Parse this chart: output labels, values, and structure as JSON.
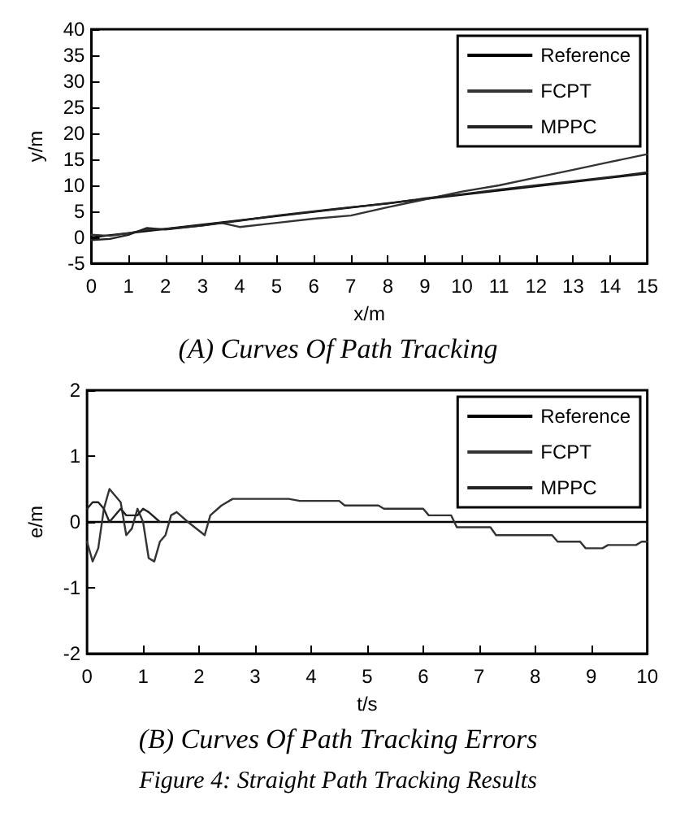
{
  "chart_data": [
    {
      "type": "line",
      "title": "(A) Curves Of Path Tracking",
      "xlabel": "x/m",
      "ylabel": "y/m",
      "xlim": [
        0,
        15
      ],
      "xticks": [
        0,
        1,
        2,
        3,
        4,
        5,
        6,
        7,
        8,
        9,
        10,
        11,
        12,
        13,
        14,
        15
      ],
      "ylim": [
        -5,
        40
      ],
      "yticks": [
        -5,
        0,
        5,
        10,
        15,
        20,
        25,
        30,
        35,
        40
      ],
      "grid": false,
      "legend": "top right",
      "marker": "none",
      "line_style": "solid",
      "series": [
        {
          "name": "Reference",
          "color": "#000000",
          "x": [
            0,
            15
          ],
          "values": [
            0,
            12.3
          ]
        },
        {
          "name": "FCPT",
          "color": "#333333",
          "x": [
            0,
            0.5,
            1,
            1.5,
            2,
            3,
            3.5,
            4,
            5,
            6,
            7,
            8,
            9,
            10,
            11,
            12,
            13,
            14,
            15
          ],
          "values": [
            0.5,
            0.3,
            0.8,
            1.5,
            1.6,
            2.3,
            2.8,
            2,
            2.8,
            3.6,
            4.2,
            5.8,
            7.3,
            8.8,
            10,
            11.5,
            13,
            14.5,
            16
          ]
        },
        {
          "name": "MPPC",
          "color": "#222222",
          "x": [
            0,
            0.5,
            1,
            1.5,
            2,
            3,
            4,
            5,
            6,
            7,
            8,
            9,
            10,
            11,
            12,
            13,
            14,
            15
          ],
          "values": [
            -0.5,
            -0.3,
            0.5,
            1.8,
            1.5,
            2.3,
            3.2,
            4.2,
            5,
            5.8,
            6.5,
            7.5,
            8.3,
            9.2,
            10,
            10.8,
            11.6,
            12.5
          ]
        }
      ]
    },
    {
      "type": "line",
      "title": "(B) Curves Of Path Tracking Errors",
      "xlabel": "t/s",
      "ylabel": "e/m",
      "xlim": [
        0,
        10
      ],
      "xticks": [
        0,
        1,
        2,
        3,
        4,
        5,
        6,
        7,
        8,
        9,
        10
      ],
      "ylim": [
        -2,
        2
      ],
      "yticks": [
        -2,
        -1,
        0,
        1,
        2
      ],
      "grid": false,
      "legend": "top right",
      "marker": "none",
      "line_style": "solid",
      "annotations": [
        "Figure 4: Straight Path Tracking Results"
      ],
      "series": [
        {
          "name": "Reference",
          "color": "#000000",
          "x": [
            0,
            10
          ],
          "values": [
            0,
            0
          ]
        },
        {
          "name": "FCPT",
          "color": "#333333",
          "x": [
            0,
            0.1,
            0.2,
            0.3,
            0.4,
            0.6,
            0.7,
            0.8,
            0.9,
            1.0,
            1.1,
            1.2,
            1.3,
            1.4,
            1.5,
            1.6,
            1.8,
            2.1,
            2.2,
            2.4,
            2.6,
            3.6,
            3.8,
            4.5,
            4.6,
            5.2,
            5.3,
            6,
            6.1,
            6.5,
            6.6,
            7.2,
            7.3,
            8.3,
            8.4,
            8.8,
            8.9,
            9.2,
            9.3,
            9.8,
            9.9,
            10
          ],
          "values": [
            -0.3,
            -0.6,
            -0.4,
            0.2,
            0.5,
            0.3,
            -0.2,
            -0.1,
            0.2,
            0,
            -0.55,
            -0.6,
            -0.3,
            -0.2,
            0.1,
            0.15,
            0,
            -0.2,
            0.1,
            0.25,
            0.35,
            0.35,
            0.32,
            0.32,
            0.25,
            0.25,
            0.2,
            0.2,
            0.1,
            0.1,
            -0.08,
            -0.08,
            -0.2,
            -0.2,
            -0.3,
            -0.3,
            -0.4,
            -0.4,
            -0.35,
            -0.35,
            -0.3,
            -0.3
          ]
        },
        {
          "name": "MPPC",
          "color": "#222222",
          "x": [
            0,
            0.1,
            0.2,
            0.3,
            0.4,
            0.6,
            0.7,
            0.8,
            0.9,
            1.0,
            1.1,
            1.3
          ],
          "values": [
            0.2,
            0.3,
            0.3,
            0.2,
            0,
            0.2,
            0.1,
            0.1,
            0.1,
            0.2,
            0.15,
            0
          ]
        }
      ]
    }
  ]
}
